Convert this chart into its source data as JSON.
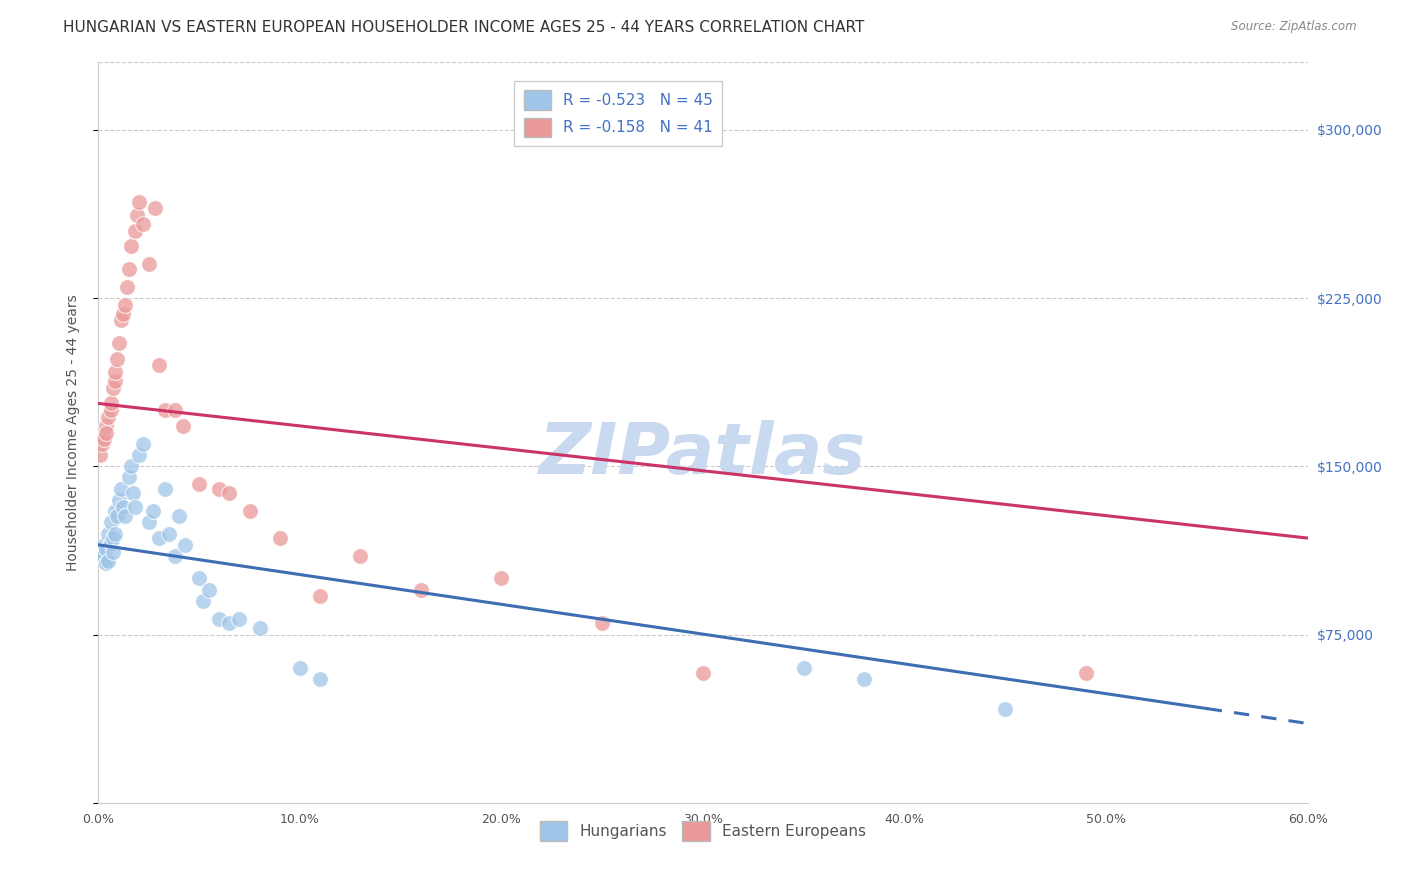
{
  "title": "HUNGARIAN VS EASTERN EUROPEAN HOUSEHOLDER INCOME AGES 25 - 44 YEARS CORRELATION CHART",
  "source": "Source: ZipAtlas.com",
  "ylabel": "Householder Income Ages 25 - 44 years",
  "xlim": [
    0.0,
    0.6
  ],
  "ylim": [
    0,
    330000
  ],
  "yticks": [
    0,
    75000,
    150000,
    225000,
    300000
  ],
  "xtick_labels": [
    "0.0%",
    "",
    "10.0%",
    "",
    "20.0%",
    "",
    "30.0%",
    "",
    "40.0%",
    "",
    "50.0%",
    "",
    "60.0%"
  ],
  "xticks": [
    0.0,
    0.05,
    0.1,
    0.15,
    0.2,
    0.25,
    0.3,
    0.35,
    0.4,
    0.45,
    0.5,
    0.55,
    0.6
  ],
  "blue_color": "#9fc5e8",
  "pink_color": "#ea9999",
  "blue_line_color": "#3d6eb4",
  "pink_line_color": "#cc3366",
  "legend_blue_label": "R = -0.523   N = 45",
  "legend_pink_label": "R = -0.158   N = 41",
  "blue_scatter_x": [
    0.001,
    0.002,
    0.003,
    0.003,
    0.004,
    0.004,
    0.005,
    0.005,
    0.006,
    0.006,
    0.007,
    0.007,
    0.008,
    0.008,
    0.009,
    0.01,
    0.011,
    0.012,
    0.013,
    0.015,
    0.016,
    0.017,
    0.018,
    0.02,
    0.022,
    0.025,
    0.027,
    0.03,
    0.033,
    0.035,
    0.038,
    0.04,
    0.043,
    0.05,
    0.052,
    0.055,
    0.06,
    0.065,
    0.07,
    0.08,
    0.1,
    0.11,
    0.35,
    0.38,
    0.45
  ],
  "blue_scatter_y": [
    112000,
    108000,
    115000,
    110000,
    113000,
    107000,
    120000,
    108000,
    125000,
    116000,
    118000,
    112000,
    130000,
    120000,
    128000,
    135000,
    140000,
    132000,
    128000,
    145000,
    150000,
    138000,
    132000,
    155000,
    160000,
    125000,
    130000,
    118000,
    140000,
    120000,
    110000,
    128000,
    115000,
    100000,
    90000,
    95000,
    82000,
    80000,
    82000,
    78000,
    60000,
    55000,
    60000,
    55000,
    42000
  ],
  "pink_scatter_x": [
    0.001,
    0.002,
    0.003,
    0.004,
    0.004,
    0.005,
    0.006,
    0.006,
    0.007,
    0.008,
    0.008,
    0.009,
    0.01,
    0.011,
    0.012,
    0.013,
    0.014,
    0.015,
    0.016,
    0.018,
    0.019,
    0.02,
    0.022,
    0.025,
    0.028,
    0.03,
    0.033,
    0.038,
    0.042,
    0.05,
    0.06,
    0.065,
    0.075,
    0.09,
    0.11,
    0.13,
    0.16,
    0.2,
    0.25,
    0.3,
    0.49
  ],
  "pink_scatter_y": [
    155000,
    160000,
    162000,
    168000,
    165000,
    172000,
    175000,
    178000,
    185000,
    188000,
    192000,
    198000,
    205000,
    215000,
    218000,
    222000,
    230000,
    238000,
    248000,
    255000,
    262000,
    268000,
    258000,
    240000,
    265000,
    195000,
    175000,
    175000,
    168000,
    142000,
    140000,
    138000,
    130000,
    118000,
    92000,
    110000,
    95000,
    100000,
    80000,
    58000,
    58000
  ],
  "blue_line_x0": 0.0,
  "blue_line_x1": 0.55,
  "blue_line_x_dash_end": 0.6,
  "blue_line_y0": 115000,
  "blue_line_y1": 42000,
  "pink_line_x0": 0.0,
  "pink_line_x1": 0.6,
  "pink_line_y0": 178000,
  "pink_line_y1": 118000,
  "background_color": "#ffffff",
  "grid_color": "#cccccc",
  "title_fontsize": 11,
  "axis_label_fontsize": 10,
  "tick_fontsize": 9,
  "watermark_text": "ZIPatlas",
  "watermark_color": "#c8d9f0",
  "watermark_fontsize": 52,
  "bottom_legend_labels": [
    "Hungarians",
    "Eastern Europeans"
  ]
}
